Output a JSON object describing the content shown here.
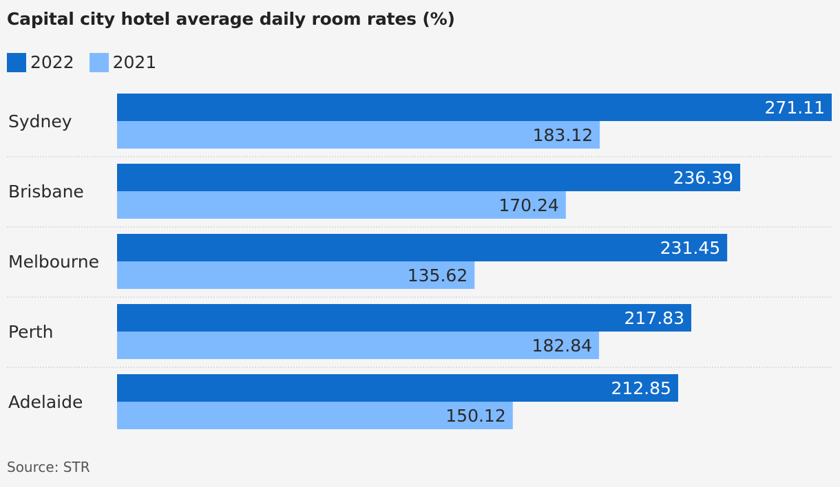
{
  "title": "Capital city hotel average daily room rates (%)",
  "source": "Source: STR",
  "colors": {
    "series_2022": "#106ccb",
    "series_2021": "#7fbaff",
    "label_on_dark": "#ffffff",
    "label_on_light": "#2a2a2a",
    "divider": "#c8c8c8"
  },
  "chart_data": {
    "type": "bar",
    "orientation": "horizontal",
    "title": "Capital city hotel average daily room rates (%)",
    "categories": [
      "Sydney",
      "Brisbane",
      "Melbourne",
      "Perth",
      "Adelaide"
    ],
    "series": [
      {
        "name": "2022",
        "values": [
          271.11,
          236.39,
          231.45,
          217.83,
          212.85
        ]
      },
      {
        "name": "2021",
        "values": [
          183.12,
          170.24,
          135.62,
          182.84,
          150.12
        ]
      }
    ],
    "xlim": [
      0,
      271.11
    ],
    "grid": false,
    "legend": "top-left",
    "data_labels": true
  }
}
